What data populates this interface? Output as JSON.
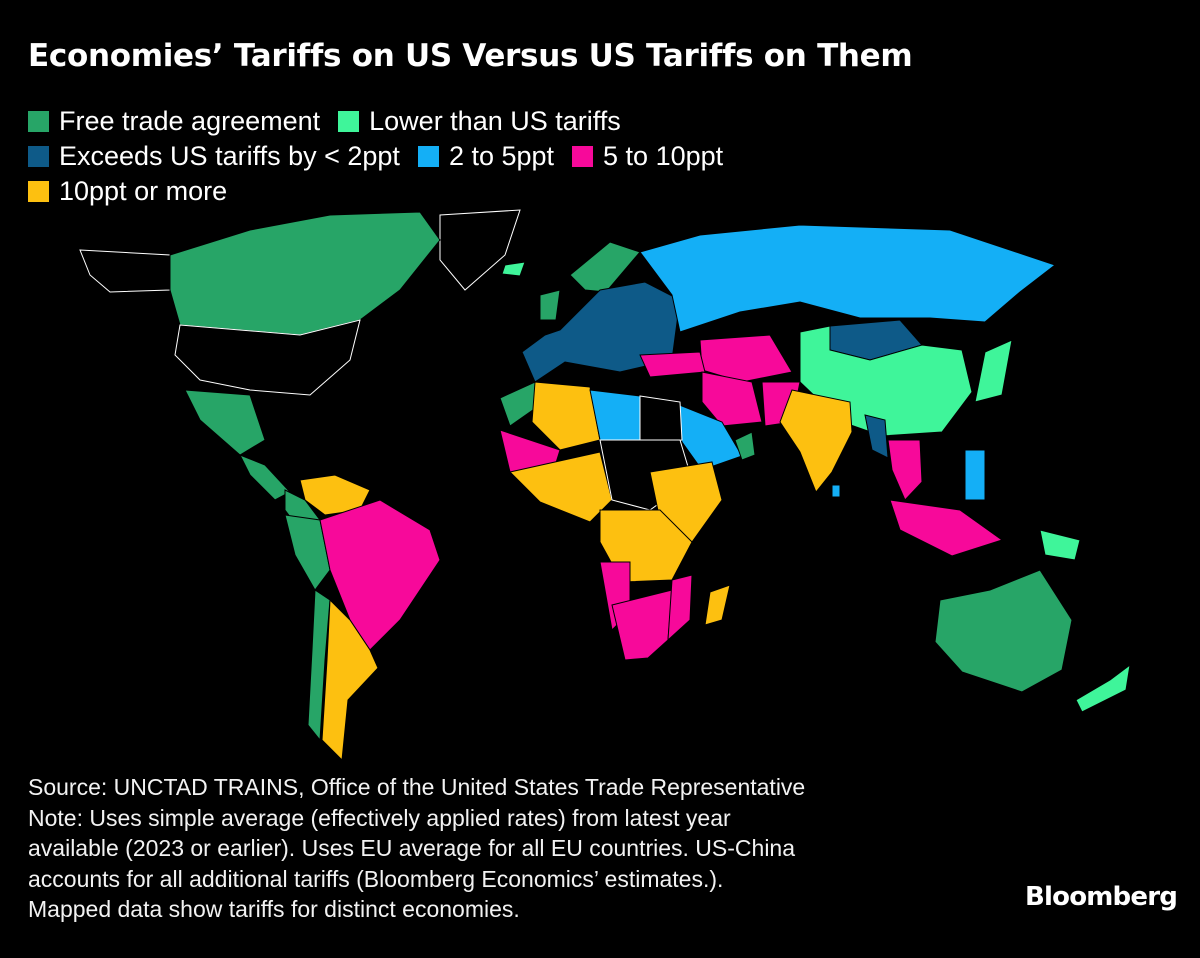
{
  "title": "Economies’ Tariffs on US Versus US Tariffs on Them",
  "legend": [
    {
      "label": "Free trade agreement",
      "color": "#27a567"
    },
    {
      "label": "Lower than US tariffs",
      "color": "#3ff59a"
    },
    {
      "label": "Exceeds US tariffs by < 2ppt",
      "color": "#0e5a88"
    },
    {
      "label": "2 to 5ppt",
      "color": "#14aff6"
    },
    {
      "label": "5 to 10ppt",
      "color": "#f7099a"
    },
    {
      "label": "10ppt or more",
      "color": "#fdc010"
    }
  ],
  "chart_data": {
    "type": "choropleth",
    "no_data_color": "#000000",
    "categories": {
      "Free trade agreement": [
        "Canada",
        "Mexico",
        "Central America",
        "Peru",
        "Chile",
        "Colombia",
        "Australia",
        "Morocco",
        "Norway",
        "United Kingdom",
        "Oman"
      ],
      "Lower than US tariffs": [
        "China",
        "Japan",
        "New Zealand",
        "Iceland",
        "Papua New Guinea"
      ],
      "Exceeds US tariffs by < 2ppt": [
        "European Union",
        "Mongolia",
        "Myanmar"
      ],
      "2 to 5ppt": [
        "Russia",
        "Libya",
        "Saudi Arabia",
        "Philippines",
        "Sri Lanka"
      ],
      "5 to 10ppt": [
        "Brazil",
        "Bolivia",
        "Turkey",
        "Iran",
        "Pakistan",
        "Central Asia",
        "Thailand",
        "Vietnam",
        "Indonesia",
        "Mali",
        "Namibia",
        "South Africa",
        "Mozambique"
      ],
      "10ppt or more": [
        "Venezuela",
        "Argentina",
        "Algeria",
        "West Africa",
        "East Africa",
        "Central-Southern Africa",
        "India",
        "Madagascar"
      ]
    }
  },
  "footer": {
    "lines": [
      "Source: UNCTAD TRAINS, Office of the United States Trade Representative",
      "Note: Uses simple average (effectively applied rates) from latest year",
      "available (2023 or earlier). Uses EU average for all EU countries. US-China",
      "accounts for all additional tariffs (Bloomberg Economics’ estimates.).",
      "Mapped data show tariffs for distinct economies."
    ]
  },
  "brand": "Bloomberg"
}
